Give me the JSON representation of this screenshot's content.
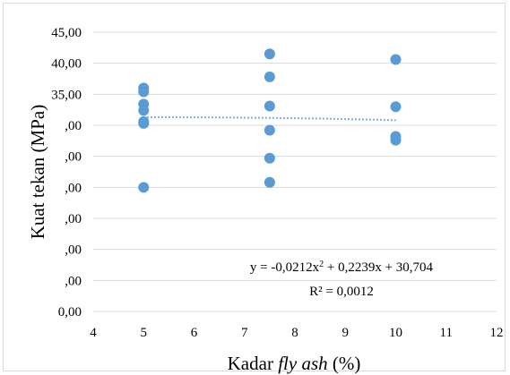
{
  "chart_data": {
    "type": "scatter",
    "title": "",
    "xlabel_prefix": "Kadar ",
    "xlabel_italic": "fly ash",
    "xlabel_suffix": " (%)",
    "ylabel": "Kuat tekan (MPa)",
    "xlim": [
      4,
      12
    ],
    "ylim": [
      0,
      45
    ],
    "x_tick_labels": [
      "4",
      "5",
      "6",
      "7",
      "8",
      "9",
      "10",
      "11",
      "12"
    ],
    "y_tick_labels": [
      "0,00",
      ",00",
      ",00",
      ",00",
      ",00",
      ",00",
      ",00",
      "35,00",
      "40,00",
      "45,00"
    ],
    "grid": "horizontal",
    "marker_color": "#5b9bd5",
    "trend_color": "#5b9bd5",
    "series": [
      {
        "x": [
          5,
          5,
          5,
          5,
          5,
          5,
          5,
          7.5,
          7.5,
          7.5,
          7.5,
          7.5,
          7.5,
          10,
          10,
          10,
          10
        ],
        "y": [
          36.0,
          35.4,
          33.4,
          32.4,
          30.6,
          30.3,
          20.0,
          41.5,
          37.8,
          33.1,
          29.2,
          24.7,
          20.8,
          40.6,
          33.0,
          28.2,
          27.6
        ]
      }
    ],
    "trendline": {
      "type": "polynomial",
      "equation_main": "y = -0,0212x",
      "equation_sup": "2",
      "equation_rest": " + 0,2239x + 30,704",
      "r_squared_label": "R² = 0,0012",
      "coefficients": [
        -0.0212,
        0.2239,
        30.704
      ]
    }
  }
}
